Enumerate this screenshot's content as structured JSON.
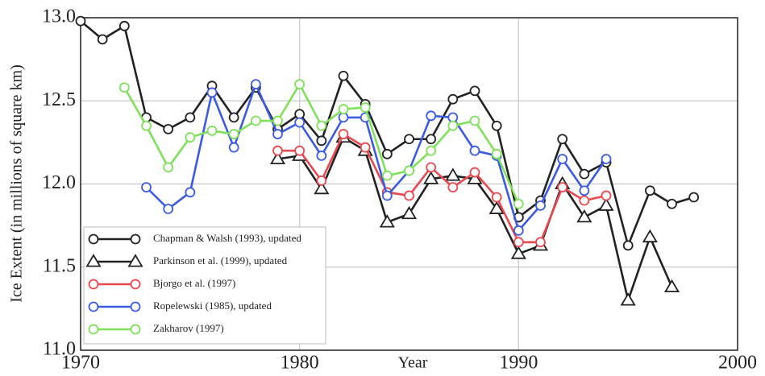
{
  "chart_data": {
    "type": "line",
    "x_label": "Year",
    "y_label": "Ice Extent (in millions of square km)",
    "xlim": [
      1970,
      2000
    ],
    "xticks": [
      1970,
      1980,
      1990,
      2000
    ],
    "ylim": [
      11,
      13
    ],
    "yticks": [
      {
        "value": 11,
        "label": "11.0"
      },
      11.5,
      {
        "value": 12,
        "label": "12.0"
      },
      12.5,
      {
        "value": 13,
        "label": "13.0"
      }
    ],
    "grid": true,
    "legend": "lower left",
    "series": [
      {
        "name": "Chapman & Walsh (1993), updated",
        "color": "#222222",
        "marker": "circle",
        "x": [
          1970,
          1971,
          1972,
          1973,
          1974,
          1975,
          1976,
          1977,
          1978,
          1979,
          1980,
          1981,
          1982,
          1983,
          1984,
          1985,
          1986,
          1987,
          1988,
          1989,
          1990,
          1991,
          1992,
          1993,
          1994,
          1995,
          1996,
          1997,
          1998
        ],
        "values": [
          12.98,
          12.87,
          12.95,
          12.4,
          12.33,
          12.4,
          12.59,
          12.4,
          12.58,
          12.33,
          12.42,
          12.26,
          12.65,
          12.48,
          12.18,
          12.27,
          12.27,
          12.51,
          12.56,
          12.35,
          11.8,
          11.9,
          12.27,
          12.06,
          12.13,
          11.63,
          11.96,
          11.88,
          11.92
        ]
      },
      {
        "name": "Parkinson et al. (1999), updated",
        "color": "#222222",
        "marker": "triangle",
        "x": [
          1979,
          1980,
          1981,
          1982,
          1983,
          1984,
          1985,
          1986,
          1987,
          1988,
          1989,
          1990,
          1991,
          1992,
          1993,
          1994,
          1995,
          1996,
          1997
        ],
        "values": [
          12.15,
          12.17,
          11.97,
          12.28,
          12.2,
          11.77,
          11.82,
          12.03,
          12.05,
          12.03,
          11.85,
          11.58,
          11.63,
          12.0,
          11.8,
          11.87,
          11.3,
          11.68,
          11.38
        ]
      },
      {
        "name": "Bjorgo et al. (1997)",
        "color": "#e8484f",
        "marker": "circle",
        "x": [
          1979,
          1980,
          1981,
          1982,
          1983,
          1984,
          1985,
          1986,
          1987,
          1988,
          1989,
          1990,
          1991,
          1992,
          1993,
          1994
        ],
        "values": [
          12.2,
          12.2,
          12.02,
          12.3,
          12.22,
          11.95,
          11.93,
          12.1,
          11.98,
          12.07,
          11.92,
          11.65,
          11.65,
          11.98,
          11.9,
          11.93
        ]
      },
      {
        "name": "Ropelewski (1985), updated",
        "color": "#3b5be0",
        "marker": "circle",
        "x": [
          1973,
          1974,
          1975,
          1976,
          1977,
          1978,
          1979,
          1980,
          1981,
          1982,
          1983,
          1984,
          1985,
          1986,
          1987,
          1988,
          1989,
          1990,
          1991,
          1992,
          1993,
          1994
        ],
        "values": [
          11.98,
          11.85,
          11.95,
          12.55,
          12.22,
          12.6,
          12.3,
          12.37,
          12.17,
          12.4,
          12.4,
          11.93,
          12.08,
          12.41,
          12.4,
          12.2,
          12.17,
          11.72,
          11.87,
          12.15,
          11.96,
          12.15
        ]
      },
      {
        "name": "Zakharov (1997)",
        "color": "#7fe05a",
        "marker": "circle",
        "x": [
          1972,
          1973,
          1974,
          1975,
          1976,
          1977,
          1978,
          1979,
          1980,
          1981,
          1982,
          1983,
          1984,
          1985,
          1986,
          1987,
          1988,
          1989,
          1990
        ],
        "values": [
          12.58,
          12.35,
          12.1,
          12.28,
          12.32,
          12.3,
          12.38,
          12.38,
          12.6,
          12.35,
          12.45,
          12.46,
          12.05,
          12.08,
          12.2,
          12.35,
          12.38,
          12.18,
          11.88
        ]
      }
    ]
  }
}
